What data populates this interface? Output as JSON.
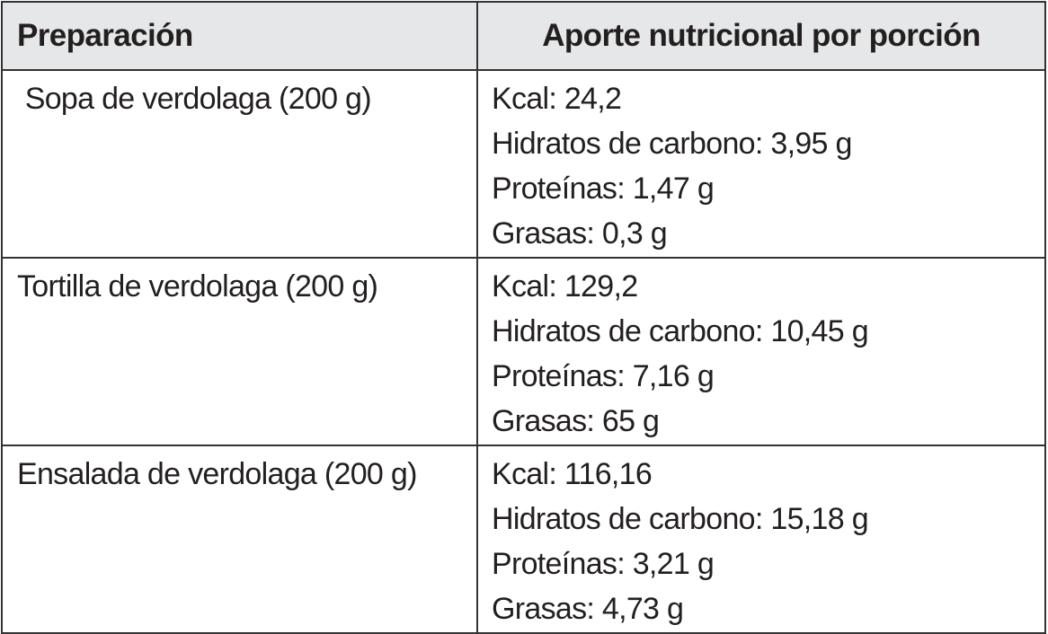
{
  "table": {
    "headers": [
      "Preparación",
      "Aporte nutricional por porción"
    ],
    "rows": [
      {
        "preparation": " Sopa de verdolaga (200 g)",
        "nutrition": [
          "Kcal: 24,2",
          "Hidratos de carbono: 3,95 g",
          "Proteínas: 1,47 g",
          "Grasas: 0,3 g"
        ]
      },
      {
        "preparation": "Tortilla de verdolaga (200 g)",
        "nutrition": [
          "Kcal: 129,2",
          "Hidratos de carbono: 10,45 g",
          "Proteínas: 7,16 g",
          "Grasas: 65 g"
        ]
      },
      {
        "preparation": "Ensalada de verdolaga (200 g)",
        "nutrition": [
          "Kcal: 116,16",
          "Hidratos de carbono: 15,18 g",
          "Proteínas: 3,21 g",
          "Grasas: 4,73 g"
        ]
      }
    ]
  }
}
